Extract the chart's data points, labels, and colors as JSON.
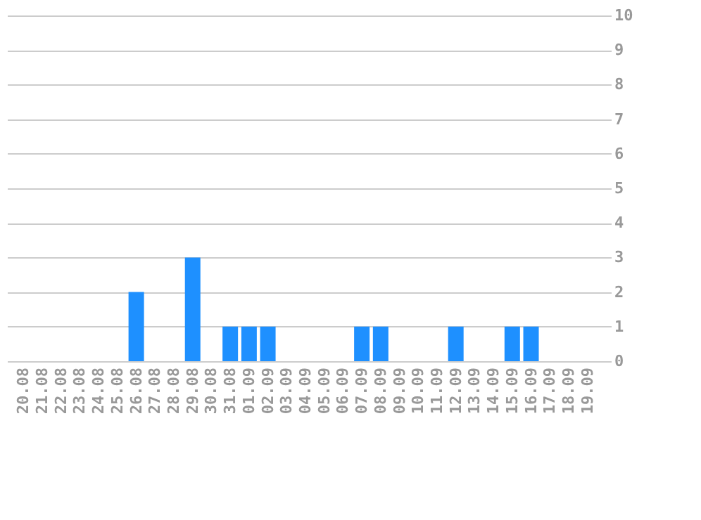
{
  "chart_data": {
    "type": "bar",
    "categories": [
      "20.08",
      "21.08",
      "22.08",
      "23.08",
      "24.08",
      "25.08",
      "26.08",
      "27.08",
      "28.08",
      "29.08",
      "30.08",
      "31.08",
      "01.09",
      "02.09",
      "03.09",
      "04.09",
      "05.09",
      "06.09",
      "07.09",
      "08.09",
      "09.09",
      "10.09",
      "11.09",
      "12.09",
      "13.09",
      "14.09",
      "15.09",
      "16.09",
      "17.09",
      "18.09",
      "19.09"
    ],
    "values": [
      0,
      0,
      0,
      0,
      0,
      0,
      2,
      0,
      0,
      3,
      0,
      1,
      1,
      1,
      0,
      0,
      0,
      0,
      1,
      1,
      0,
      0,
      0,
      1,
      0,
      0,
      1,
      1,
      0,
      0,
      0
    ],
    "color": "#1e90ff",
    "ylim": [
      0,
      10
    ],
    "yticks": [
      0,
      1,
      2,
      3,
      4,
      5,
      6,
      7,
      8,
      9,
      10
    ],
    "grid": "y"
  }
}
